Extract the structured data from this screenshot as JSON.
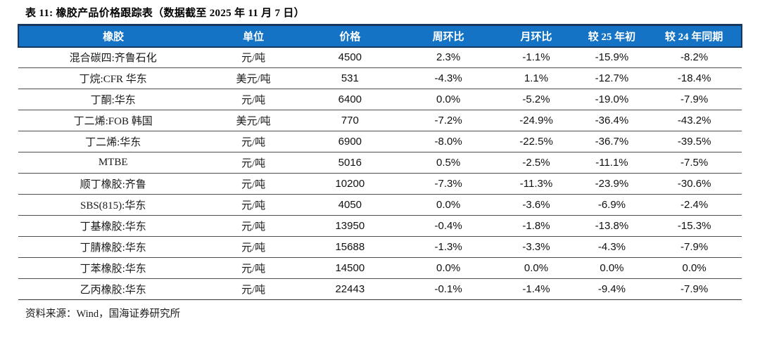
{
  "title": "表 11: 橡胶产品价格跟踪表（数据截至 2025 年 11 月 7 日）",
  "source": "资料来源：Wind，国海证券研究所",
  "colors": {
    "header_bg": "#1473C4",
    "header_border": "#17365D",
    "row_border": "#4d4d4d",
    "header_text": "#ffffff"
  },
  "chart_data": {
    "type": "table",
    "columns": [
      "橡胶",
      "单位",
      "价格",
      "周环比",
      "月环比",
      "较 25 年初",
      "较 24 年同期"
    ],
    "column_widths_pct": [
      26.2,
      12.6,
      14.1,
      13.1,
      11.2,
      9.7,
      13.1
    ],
    "rows": [
      [
        "混合碳四:齐鲁石化",
        "元/吨",
        "4500",
        "2.3%",
        "-1.1%",
        "-15.9%",
        "-8.2%"
      ],
      [
        "丁烷:CFR 华东",
        "美元/吨",
        "531",
        "-4.3%",
        "1.1%",
        "-12.7%",
        "-18.4%"
      ],
      [
        "丁酮:华东",
        "元/吨",
        "6400",
        "0.0%",
        "-5.2%",
        "-19.0%",
        "-7.9%"
      ],
      [
        "丁二烯:FOB 韩国",
        "美元/吨",
        "770",
        "-7.2%",
        "-24.9%",
        "-36.4%",
        "-43.2%"
      ],
      [
        "丁二烯:华东",
        "元/吨",
        "6900",
        "-8.0%",
        "-22.5%",
        "-36.7%",
        "-39.5%"
      ],
      [
        "MTBE",
        "元/吨",
        "5016",
        "0.5%",
        "-2.5%",
        "-11.1%",
        "-7.5%"
      ],
      [
        "顺丁橡胶:齐鲁",
        "元/吨",
        "10200",
        "-7.3%",
        "-11.3%",
        "-23.9%",
        "-30.6%"
      ],
      [
        "SBS(815):华东",
        "元/吨",
        "4050",
        "0.0%",
        "-3.6%",
        "-6.9%",
        "-2.4%"
      ],
      [
        "丁基橡胶:华东",
        "元/吨",
        "13950",
        "-0.4%",
        "-1.8%",
        "-13.8%",
        "-15.3%"
      ],
      [
        "丁腈橡胶:华东",
        "元/吨",
        "15688",
        "-1.3%",
        "-3.3%",
        "-4.3%",
        "-7.9%"
      ],
      [
        "丁苯橡胶:华东",
        "元/吨",
        "14500",
        "0.0%",
        "0.0%",
        "0.0%",
        "0.0%"
      ],
      [
        "乙丙橡胶:华东",
        "元/吨",
        "22443",
        "-0.1%",
        "-1.4%",
        "-9.4%",
        "-7.9%"
      ]
    ]
  }
}
